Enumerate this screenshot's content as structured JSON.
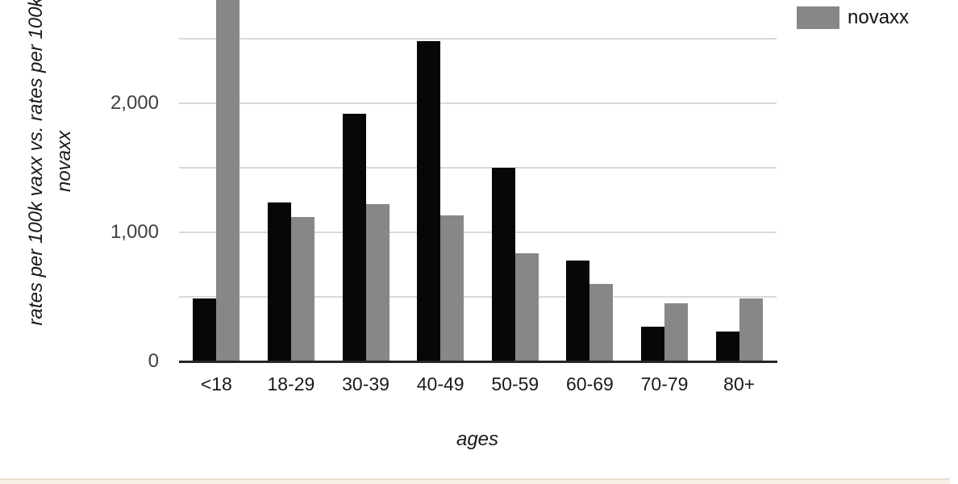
{
  "page": {
    "background": "#ffffff",
    "bottom_edge_fill": "#f5f0e1",
    "bottom_edge_border": "#e7e0cb"
  },
  "chart_data": {
    "type": "bar",
    "title": "",
    "categories": [
      "<18",
      "18-29",
      "30-39",
      "40-49",
      "50-59",
      "60-69",
      "70-79",
      "80+"
    ],
    "series": [
      {
        "name": "",
        "legend_visible": false,
        "color": "#070707",
        "values": [
          490,
          1230,
          1920,
          2480,
          1500,
          780,
          270,
          230
        ],
        "note": "black series; its legend entry is cropped out of view above the image"
      },
      {
        "name": "novaxx",
        "legend_visible": true,
        "color": "#878785",
        "values": [
          2810,
          1120,
          1220,
          1130,
          840,
          600,
          450,
          490
        ],
        "clipped_at_top": [
          true,
          false,
          false,
          false,
          false,
          false,
          false,
          false
        ],
        "note": "first bar (<18) extends past the top edge of the image; 2810 is the minimum visible value"
      }
    ],
    "xlabel": "ages",
    "ylabel_lines": [
      "rates per 100k vaxx vs. rates per 100k",
      "novaxx"
    ],
    "y_ticks": [
      {
        "value": 0,
        "label": "0"
      },
      {
        "value": 1000,
        "label": "1,000"
      },
      {
        "value": 2000,
        "label": "2,000"
      }
    ],
    "gridline_step": 500,
    "gridline_max": 2500,
    "visible_y_max": 2806,
    "grid": true,
    "gridline_color": "#d9d9d9",
    "axis_line_color": "#262626",
    "legend_position": "top-right"
  }
}
